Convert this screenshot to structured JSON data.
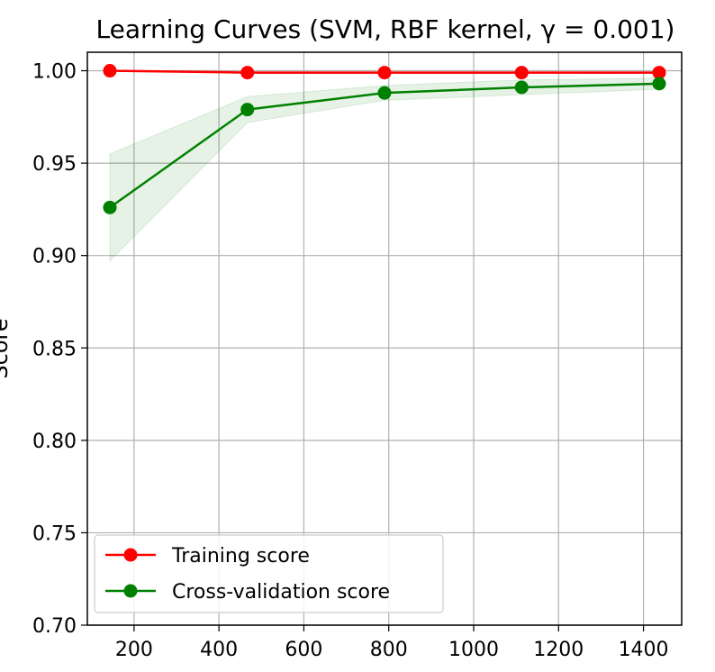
{
  "chart_data": {
    "type": "line",
    "title": "Learning Curves (SVM, RBF kernel, γ = 0.001)",
    "xlabel": "",
    "ylabel": "Score",
    "xlim": [
      90,
      1490
    ],
    "ylim": [
      0.7,
      1.01
    ],
    "xticks": [
      200,
      400,
      600,
      800,
      1000,
      1200,
      1400
    ],
    "yticks": [
      0.7,
      0.75,
      0.8,
      0.85,
      0.9,
      0.95,
      1.0
    ],
    "grid": true,
    "legend_position": "bottom-left",
    "x": [
      143,
      467,
      790,
      1113,
      1437
    ],
    "series": [
      {
        "name": "Training score",
        "color": "#ff0000",
        "values": [
          1.0,
          0.999,
          0.999,
          0.999,
          0.999
        ],
        "band_low": [
          1.0,
          0.9985,
          0.9985,
          0.9985,
          0.9985
        ],
        "band_high": [
          1.0,
          0.9995,
          0.9995,
          0.9995,
          0.9995
        ]
      },
      {
        "name": "Cross-validation score",
        "color": "#008000",
        "band_color": "#008000",
        "values": [
          0.926,
          0.979,
          0.988,
          0.991,
          0.993
        ],
        "band_low": [
          0.897,
          0.972,
          0.984,
          0.987,
          0.99
        ],
        "band_high": [
          0.955,
          0.986,
          0.992,
          0.995,
          0.996
        ]
      }
    ]
  }
}
